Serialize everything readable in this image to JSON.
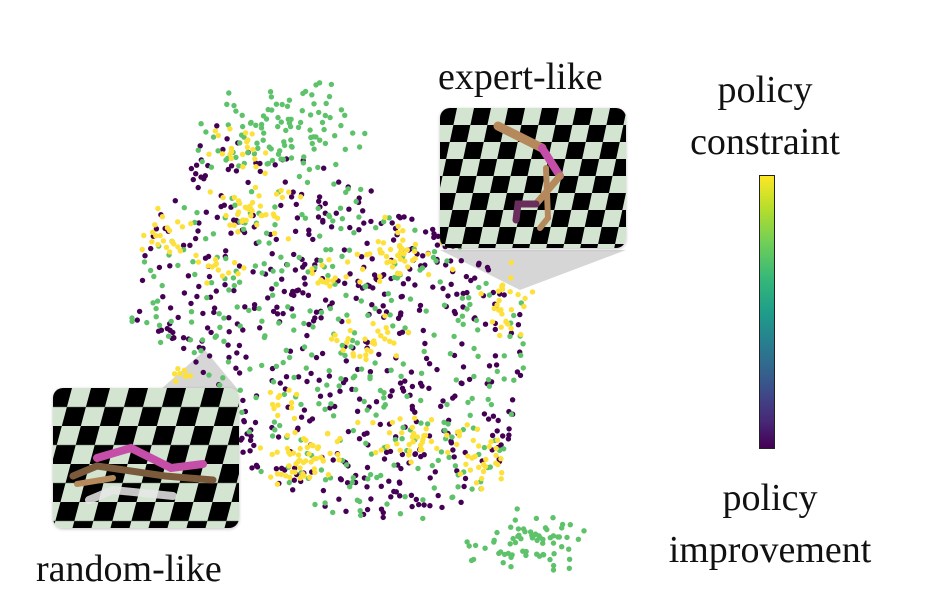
{
  "labels": {
    "expert": "expert-like",
    "random": "random-like"
  },
  "colorbar": {
    "top_line1": "policy",
    "top_line2": "constraint",
    "bottom_line1": "policy",
    "bottom_line2": "improvement",
    "colormap": "viridis"
  },
  "colors": {
    "purple": "#440154",
    "green": "#5ec26a",
    "yellow": "#fde13a",
    "limb_magenta": "#c54fa8",
    "limb_tan": "#b5895b",
    "checker_light": "#d3e5d1",
    "checker_dark": "#000000"
  },
  "scatter_clusters": {
    "purple_main": {
      "color": "purple",
      "count": 520
    },
    "green_main": {
      "color": "green",
      "count": 360
    },
    "green_top": {
      "color": "green",
      "count": 90
    },
    "green_bottom_right": {
      "color": "green",
      "count": 70
    },
    "yellow_groups": {
      "color": "yellow",
      "count": 14
    }
  }
}
